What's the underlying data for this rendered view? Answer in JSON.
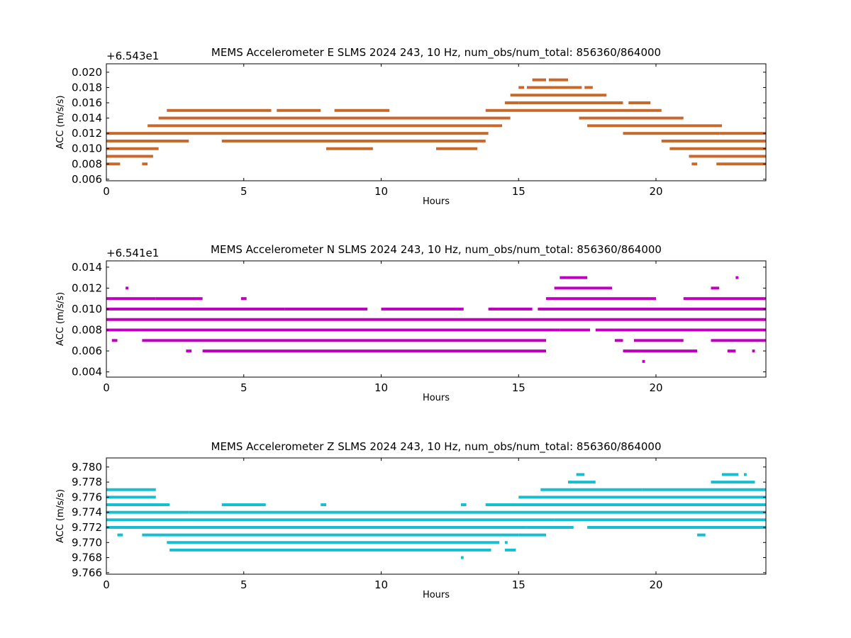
{
  "chart_data": [
    {
      "type": "scatter",
      "title": "MEMS Accelerometer E SLMS 2024 243, 10 Hz, num_obs/num_total: 856360/864000",
      "xlabel": "Hours",
      "ylabel": "ACC (m/s/s)",
      "offset_text": "+6.543e1",
      "color": "#c8692c",
      "xlim": [
        0,
        24
      ],
      "ylim": [
        0.0058,
        0.0211
      ],
      "xticks": [
        0,
        5,
        10,
        15,
        20
      ],
      "yticks": [
        0.006,
        0.008,
        0.01,
        0.012,
        0.014,
        0.016,
        0.018,
        0.02
      ],
      "ytick_labels": [
        "0.006",
        "0.008",
        "0.010",
        "0.012",
        "0.014",
        "0.016",
        "0.018",
        "0.020"
      ],
      "grid": false,
      "series": [
        {
          "y": 0.019,
          "segments": [
            [
              15.5,
              16.0
            ],
            [
              16.1,
              16.8
            ]
          ]
        },
        {
          "y": 0.018,
          "segments": [
            [
              15.0,
              15.2
            ],
            [
              15.3,
              17.3
            ],
            [
              17.4,
              17.7
            ]
          ]
        },
        {
          "y": 0.017,
          "segments": [
            [
              14.7,
              18.2
            ]
          ]
        },
        {
          "y": 0.016,
          "segments": [
            [
              14.5,
              15.0
            ],
            [
              15.0,
              18.8
            ],
            [
              19.0,
              19.8
            ]
          ]
        },
        {
          "y": 0.015,
          "segments": [
            [
              2.2,
              6.0
            ],
            [
              6.2,
              7.8
            ],
            [
              8.3,
              10.3
            ],
            [
              13.8,
              20.2
            ]
          ]
        },
        {
          "y": 0.014,
          "segments": [
            [
              1.9,
              14.7
            ],
            [
              17.2,
              21.0
            ]
          ]
        },
        {
          "y": 0.013,
          "segments": [
            [
              1.5,
              14.4
            ],
            [
              17.5,
              22.4
            ]
          ]
        },
        {
          "y": 0.012,
          "segments": [
            [
              0.0,
              13.9
            ],
            [
              18.8,
              22.3
            ],
            [
              22.3,
              24.0
            ]
          ]
        },
        {
          "y": 0.011,
          "segments": [
            [
              0.0,
              3.0
            ],
            [
              4.2,
              13.8
            ],
            [
              20.2,
              24.0
            ]
          ]
        },
        {
          "y": 0.01,
          "segments": [
            [
              0.0,
              1.9
            ],
            [
              8.0,
              9.7
            ],
            [
              12.0,
              13.5
            ],
            [
              20.5,
              24.0
            ]
          ]
        },
        {
          "y": 0.009,
          "segments": [
            [
              0.0,
              1.7
            ],
            [
              21.2,
              24.0
            ]
          ]
        },
        {
          "y": 0.008,
          "segments": [
            [
              0.0,
              0.5
            ],
            [
              1.3,
              1.5
            ],
            [
              21.3,
              21.5
            ],
            [
              22.2,
              24.0
            ]
          ]
        }
      ]
    },
    {
      "type": "scatter",
      "title": "MEMS Accelerometer N SLMS 2024 243, 10 Hz, num_obs/num_total: 856360/864000",
      "xlabel": "Hours",
      "ylabel": "ACC (m/s/s)",
      "offset_text": "+6.541e1",
      "color": "#bf00bf",
      "xlim": [
        0,
        24
      ],
      "ylim": [
        0.0035,
        0.0146
      ],
      "xticks": [
        0,
        5,
        10,
        15,
        20
      ],
      "yticks": [
        0.004,
        0.006,
        0.008,
        0.01,
        0.012,
        0.014
      ],
      "ytick_labels": [
        "0.004",
        "0.006",
        "0.008",
        "0.010",
        "0.012",
        "0.014"
      ],
      "grid": false,
      "series": [
        {
          "y": 0.013,
          "segments": [
            [
              16.5,
              17.5
            ],
            [
              22.9,
              23.0
            ]
          ]
        },
        {
          "y": 0.012,
          "segments": [
            [
              0.7,
              0.8
            ],
            [
              16.3,
              18.4
            ],
            [
              22.0,
              22.3
            ]
          ]
        },
        {
          "y": 0.011,
          "segments": [
            [
              0.0,
              1.8
            ],
            [
              1.8,
              3.5
            ],
            [
              4.9,
              5.1
            ],
            [
              16.0,
              20.0
            ],
            [
              21.0,
              24.0
            ]
          ]
        },
        {
          "y": 0.01,
          "segments": [
            [
              0.0,
              6.5
            ],
            [
              6.5,
              9.5
            ],
            [
              10.0,
              13.0
            ],
            [
              13.9,
              15.5
            ],
            [
              15.7,
              24.0
            ]
          ]
        },
        {
          "y": 0.009,
          "segments": [
            [
              0.0,
              24.0
            ]
          ]
        },
        {
          "y": 0.008,
          "segments": [
            [
              0.0,
              16.5
            ],
            [
              16.5,
              17.6
            ],
            [
              17.8,
              24.0
            ]
          ]
        },
        {
          "y": 0.007,
          "segments": [
            [
              0.2,
              0.4
            ],
            [
              1.3,
              16.0
            ],
            [
              18.5,
              18.8
            ],
            [
              19.2,
              21.0
            ],
            [
              22.0,
              24.0
            ]
          ]
        },
        {
          "y": 0.006,
          "segments": [
            [
              2.9,
              3.1
            ],
            [
              3.5,
              16.0
            ],
            [
              18.8,
              21.5
            ],
            [
              22.6,
              22.9
            ],
            [
              23.5,
              23.6
            ]
          ]
        },
        {
          "y": 0.005,
          "segments": [
            [
              19.5,
              19.6
            ]
          ]
        }
      ]
    },
    {
      "type": "scatter",
      "title": "MEMS Accelerometer Z SLMS 2024 243, 10 Hz, num_obs/num_total: 856360/864000",
      "xlabel": "Hours",
      "ylabel": "ACC (m/s/s)",
      "offset_text": "",
      "color": "#17becf",
      "xlim": [
        0,
        24
      ],
      "ylim": [
        9.7658,
        9.7812
      ],
      "xticks": [
        0,
        5,
        10,
        15,
        20
      ],
      "yticks": [
        9.766,
        9.768,
        9.77,
        9.772,
        9.774,
        9.776,
        9.778,
        9.78
      ],
      "ytick_labels": [
        "9.766",
        "9.768",
        "9.770",
        "9.772",
        "9.774",
        "9.776",
        "9.778",
        "9.780"
      ],
      "grid": false,
      "series": [
        {
          "y": 9.779,
          "segments": [
            [
              17.1,
              17.4
            ],
            [
              22.4,
              23.0
            ],
            [
              23.2,
              23.3
            ]
          ]
        },
        {
          "y": 9.778,
          "segments": [
            [
              16.8,
              17.8
            ],
            [
              22.0,
              23.6
            ]
          ]
        },
        {
          "y": 9.777,
          "segments": [
            [
              0.0,
              1.8
            ],
            [
              15.8,
              19.5
            ],
            [
              19.5,
              22.0
            ],
            [
              22.0,
              24.0
            ]
          ]
        },
        {
          "y": 9.776,
          "segments": [
            [
              0.0,
              1.8
            ],
            [
              15.0,
              24.0
            ]
          ]
        },
        {
          "y": 9.775,
          "segments": [
            [
              0.0,
              2.3
            ],
            [
              4.2,
              5.8
            ],
            [
              7.8,
              8.0
            ],
            [
              12.9,
              13.1
            ],
            [
              13.8,
              24.0
            ]
          ]
        },
        {
          "y": 9.774,
          "segments": [
            [
              0.0,
              3.0
            ],
            [
              3.0,
              24.0
            ]
          ]
        },
        {
          "y": 9.773,
          "segments": [
            [
              0.0,
              16.3
            ],
            [
              16.3,
              24.0
            ]
          ]
        },
        {
          "y": 9.772,
          "segments": [
            [
              0.0,
              15.3
            ],
            [
              15.3,
              17.0
            ],
            [
              17.5,
              24.0
            ]
          ]
        },
        {
          "y": 9.771,
          "segments": [
            [
              0.4,
              0.6
            ],
            [
              1.3,
              15.0
            ],
            [
              15.0,
              16.0
            ],
            [
              21.5,
              21.8
            ]
          ]
        },
        {
          "y": 9.77,
          "segments": [
            [
              2.2,
              14.3
            ],
            [
              14.5,
              14.6
            ]
          ]
        },
        {
          "y": 9.769,
          "segments": [
            [
              2.3,
              14.0
            ],
            [
              14.5,
              14.9
            ]
          ]
        },
        {
          "y": 9.768,
          "segments": [
            [
              12.9,
              13.0
            ]
          ]
        }
      ]
    }
  ]
}
